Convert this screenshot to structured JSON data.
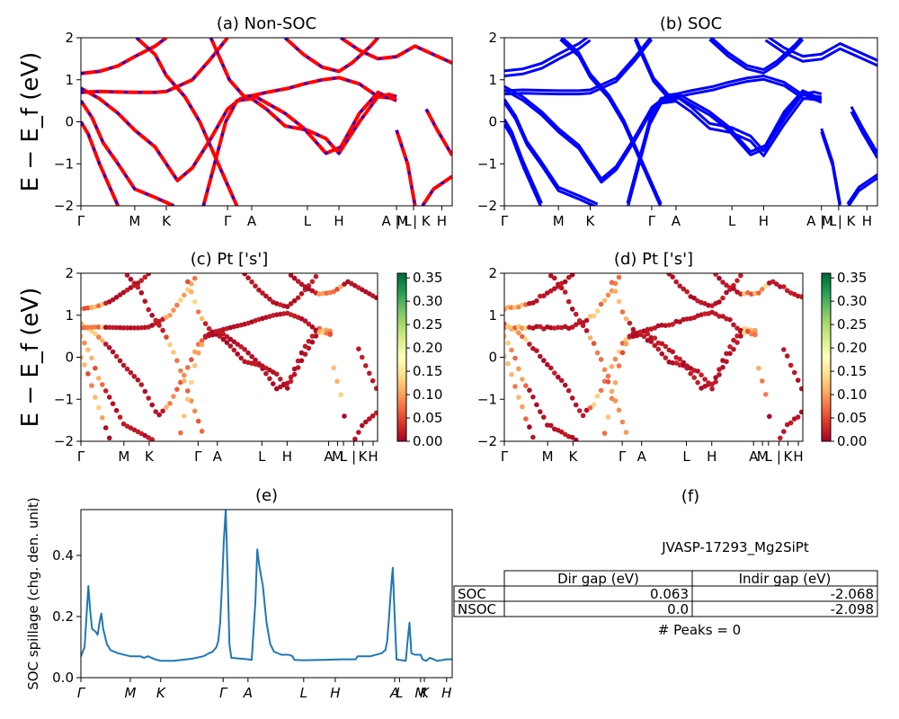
{
  "chart_data": [
    {
      "panel": "a",
      "type": "line",
      "title": "(a) Non-SOC",
      "ylabel": "E − E_f (eV)",
      "ylim": [
        -2,
        2
      ],
      "yticks": [
        "2",
        "1",
        "0",
        "−1",
        "−2"
      ],
      "kpath_labels": [
        "Γ",
        "M",
        "K",
        "Γ",
        "A",
        "L",
        "H",
        "A | L",
        "M | K",
        "H"
      ],
      "kpath_pos": [
        0,
        0.145,
        0.23,
        0.395,
        0.46,
        0.61,
        0.695,
        0.85,
        0.896,
        0.972
      ],
      "series": [
        {
          "color": "#ff0000",
          "bands": [
            [
              [
                0,
                1.15
              ],
              [
                0.05,
                1.2
              ],
              [
                0.1,
                1.33
              ],
              [
                0.145,
                1.55
              ],
              [
                0.2,
                1.8
              ],
              [
                0.23,
                2.0
              ]
            ],
            [
              [
                0,
                0.8
              ],
              [
                0.05,
                0.55
              ],
              [
                0.1,
                0.2
              ],
              [
                0.145,
                -0.2
              ],
              [
                0.2,
                -0.6
              ],
              [
                0.26,
                -1.4
              ],
              [
                0.3,
                -1.1
              ],
              [
                0.35,
                -0.4
              ],
              [
                0.395,
                0.3
              ],
              [
                0.43,
                0.55
              ],
              [
                0.47,
                0.6
              ],
              [
                0.5,
                0.45
              ],
              [
                0.55,
                0.2
              ],
              [
                0.6,
                -0.15
              ],
              [
                0.66,
                -0.75
              ],
              [
                0.7,
                -0.6
              ],
              [
                0.75,
                0.2
              ],
              [
                0.8,
                0.7
              ],
              [
                0.85,
                0.5
              ]
            ],
            [
              [
                0,
                0.5
              ],
              [
                0.03,
                0.1
              ],
              [
                0.06,
                -0.5
              ],
              [
                0.1,
                -1.0
              ],
              [
                0.145,
                -1.6
              ],
              [
                0.2,
                -1.8
              ],
              [
                0.25,
                -2.0
              ]
            ],
            [
              [
                0,
                0.0
              ],
              [
                0.02,
                -0.3
              ],
              [
                0.05,
                -1.0
              ],
              [
                0.08,
                -1.6
              ],
              [
                0.1,
                -2.0
              ]
            ],
            [
              [
                0,
                0.7
              ],
              [
                0.05,
                0.72
              ],
              [
                0.145,
                0.7
              ],
              [
                0.2,
                0.7
              ],
              [
                0.23,
                0.72
              ],
              [
                0.3,
                1.0
              ],
              [
                0.35,
                1.5
              ],
              [
                0.395,
                2.0
              ]
            ],
            [
              [
                0.15,
                2.0
              ],
              [
                0.2,
                1.6
              ],
              [
                0.23,
                1.1
              ],
              [
                0.28,
                0.6
              ],
              [
                0.32,
                0.0
              ],
              [
                0.36,
                -0.8
              ],
              [
                0.4,
                -1.6
              ],
              [
                0.42,
                -2.0
              ]
            ],
            [
              [
                0.33,
                -2.0
              ],
              [
                0.36,
                -1.0
              ],
              [
                0.39,
                0.0
              ],
              [
                0.42,
                0.5
              ],
              [
                0.46,
                0.55
              ],
              [
                0.5,
                0.3
              ],
              [
                0.55,
                -0.1
              ],
              [
                0.61,
                -0.2
              ],
              [
                0.66,
                -0.4
              ],
              [
                0.695,
                -0.75
              ],
              [
                0.75,
                0.0
              ],
              [
                0.8,
                0.6
              ],
              [
                0.83,
                0.65
              ],
              [
                0.85,
                0.6
              ]
            ],
            [
              [
                0.35,
                2.0
              ],
              [
                0.4,
                1.0
              ],
              [
                0.44,
                0.6
              ],
              [
                0.46,
                0.62
              ],
              [
                0.5,
                0.7
              ],
              [
                0.56,
                0.8
              ],
              [
                0.6,
                0.9
              ],
              [
                0.65,
                1.0
              ],
              [
                0.695,
                1.05
              ],
              [
                0.75,
                0.9
              ],
              [
                0.8,
                0.6
              ],
              [
                0.85,
                0.55
              ]
            ],
            [
              [
                0.55,
                2.0
              ],
              [
                0.6,
                1.6
              ],
              [
                0.65,
                1.3
              ],
              [
                0.695,
                1.2
              ],
              [
                0.73,
                1.4
              ],
              [
                0.78,
                1.8
              ],
              [
                0.8,
                2.0
              ]
            ],
            [
              [
                0.7,
                2.0
              ],
              [
                0.75,
                1.7
              ],
              [
                0.8,
                1.5
              ],
              [
                0.85,
                1.55
              ],
              [
                0.9,
                1.8
              ],
              [
                0.95,
                1.6
              ],
              [
                1.0,
                1.4
              ]
            ],
            [
              [
                0.85,
                -0.2
              ],
              [
                0.88,
                -1.0
              ],
              [
                0.9,
                -2.0
              ]
            ],
            [
              [
                0.92,
                -2.0
              ],
              [
                0.95,
                -1.6
              ],
              [
                1.0,
                -1.3
              ]
            ],
            [
              [
                0.93,
                0.3
              ],
              [
                0.96,
                -0.2
              ],
              [
                1.0,
                -0.8
              ]
            ]
          ]
        },
        {
          "color": "#0000ff",
          "dashed": true
        }
      ]
    },
    {
      "panel": "b",
      "type": "line",
      "title": "(b) SOC",
      "ylim": [
        -2,
        2
      ],
      "yticks": [
        "2",
        "1",
        "0",
        "−1",
        "−2"
      ],
      "kpath_labels": [
        "Γ",
        "M",
        "K",
        "Γ",
        "A",
        "L",
        "H",
        "A | L",
        "M | K",
        "H"
      ],
      "series": [
        {
          "color": "#0000ff"
        }
      ]
    },
    {
      "panel": "c",
      "type": "scatter",
      "title": "(c)  Pt ['s']",
      "ylabel": "E − E_f (eV)",
      "ylim": [
        -2,
        2
      ],
      "yticks": [
        "2",
        "1",
        "0",
        "−1",
        "−2"
      ],
      "kpath_labels": [
        "Γ",
        "M",
        "K",
        "Γ",
        "A",
        "L",
        "H",
        "A",
        "M",
        "L",
        "|",
        "K",
        "H"
      ],
      "kpath_pos": [
        0,
        0.145,
        0.23,
        0.395,
        0.46,
        0.61,
        0.695,
        0.835,
        0.865,
        0.885,
        0.92,
        0.95,
        0.985
      ],
      "colorbar": {
        "min": 0.0,
        "max": 0.36,
        "ticks": [
          "0.00",
          "0.05",
          "0.10",
          "0.15",
          "0.20",
          "0.25",
          "0.30",
          "0.35"
        ],
        "colormap": "RdYlGn"
      }
    },
    {
      "panel": "d",
      "type": "scatter",
      "title": "(d) Pt ['s']",
      "ylim": [
        -2,
        2
      ],
      "yticks": [
        "2",
        "1",
        "0",
        "−1",
        "−2"
      ],
      "kpath_labels": [
        "Γ",
        "M",
        "K",
        "Γ",
        "A",
        "L",
        "H",
        "A",
        "M",
        "L",
        "|",
        "K",
        "H"
      ],
      "colorbar": {
        "min": 0.0,
        "max": 0.36,
        "ticks": [
          "0.00",
          "0.05",
          "0.10",
          "0.15",
          "0.20",
          "0.25",
          "0.30",
          "0.35"
        ],
        "colormap": "RdYlGn"
      }
    },
    {
      "panel": "e",
      "type": "line",
      "title": "(e)",
      "ylabel": "SOC spillage (chg. den. unit)",
      "ylim": [
        0,
        0.55
      ],
      "yticks": [
        "0.0",
        "0.2",
        "0.4"
      ],
      "kpath_labels": [
        "Γ",
        "M",
        "K",
        "Γ",
        "A",
        "L",
        "H",
        "A",
        "L",
        "M",
        "K",
        "H"
      ],
      "kpath_pos": [
        0,
        0.133,
        0.215,
        0.383,
        0.45,
        0.6,
        0.685,
        0.845,
        0.858,
        0.915,
        0.925,
        0.985
      ],
      "series": [
        {
          "color": "#1f77b4",
          "values": [
            [
              0,
              0.07
            ],
            [
              0.01,
              0.1
            ],
            [
              0.015,
              0.2
            ],
            [
              0.02,
              0.3
            ],
            [
              0.025,
              0.22
            ],
            [
              0.03,
              0.16
            ],
            [
              0.04,
              0.15
            ],
            [
              0.045,
              0.14
            ],
            [
              0.05,
              0.18
            ],
            [
              0.055,
              0.21
            ],
            [
              0.06,
              0.16
            ],
            [
              0.07,
              0.11
            ],
            [
              0.08,
              0.09
            ],
            [
              0.1,
              0.08
            ],
            [
              0.133,
              0.07
            ],
            [
              0.16,
              0.07
            ],
            [
              0.17,
              0.065
            ],
            [
              0.18,
              0.07
            ],
            [
              0.2,
              0.06
            ],
            [
              0.215,
              0.055
            ],
            [
              0.25,
              0.055
            ],
            [
              0.3,
              0.062
            ],
            [
              0.33,
              0.07
            ],
            [
              0.345,
              0.08
            ],
            [
              0.355,
              0.085
            ],
            [
              0.365,
              0.1
            ],
            [
              0.37,
              0.12
            ],
            [
              0.375,
              0.18
            ],
            [
              0.38,
              0.3
            ],
            [
              0.385,
              0.45
            ],
            [
              0.39,
              0.55
            ],
            [
              0.395,
              0.35
            ],
            [
              0.4,
              0.11
            ],
            [
              0.405,
              0.065
            ],
            [
              0.45,
              0.06
            ],
            [
              0.46,
              0.058
            ],
            [
              0.47,
              0.25
            ],
            [
              0.475,
              0.42
            ],
            [
              0.48,
              0.37
            ],
            [
              0.49,
              0.3
            ],
            [
              0.5,
              0.18
            ],
            [
              0.51,
              0.11
            ],
            [
              0.52,
              0.085
            ],
            [
              0.54,
              0.075
            ],
            [
              0.56,
              0.075
            ],
            [
              0.57,
              0.07
            ],
            [
              0.575,
              0.058
            ],
            [
              0.6,
              0.057
            ],
            [
              0.65,
              0.058
            ],
            [
              0.7,
              0.06
            ],
            [
              0.74,
              0.06
            ],
            [
              0.745,
              0.07
            ],
            [
              0.78,
              0.07
            ],
            [
              0.81,
              0.08
            ],
            [
              0.82,
              0.09
            ],
            [
              0.825,
              0.12
            ],
            [
              0.83,
              0.2
            ],
            [
              0.835,
              0.29
            ],
            [
              0.84,
              0.36
            ],
            [
              0.845,
              0.2
            ],
            [
              0.85,
              0.06
            ],
            [
              0.858,
              0.058
            ],
            [
              0.875,
              0.055
            ],
            [
              0.88,
              0.12
            ],
            [
              0.885,
              0.18
            ],
            [
              0.89,
              0.08
            ],
            [
              0.9,
              0.075
            ],
            [
              0.915,
              0.075
            ],
            [
              0.92,
              0.06
            ],
            [
              0.93,
              0.055
            ],
            [
              0.94,
              0.065
            ],
            [
              0.96,
              0.055
            ],
            [
              0.985,
              0.06
            ],
            [
              1.0,
              0.06
            ]
          ]
        }
      ]
    },
    {
      "panel": "f",
      "type": "table",
      "title": "(f)",
      "label": "JVASP-17293_Mg2SiPt",
      "columns": [
        "Dir gap (eV)",
        "Indir gap (eV)"
      ],
      "rows": [
        {
          "label": "SOC",
          "values": [
            "0.063",
            "-2.068"
          ]
        },
        {
          "label": "NSOC",
          "values": [
            "0.0",
            "-2.098"
          ]
        }
      ],
      "note": "# Peaks = 0"
    }
  ]
}
